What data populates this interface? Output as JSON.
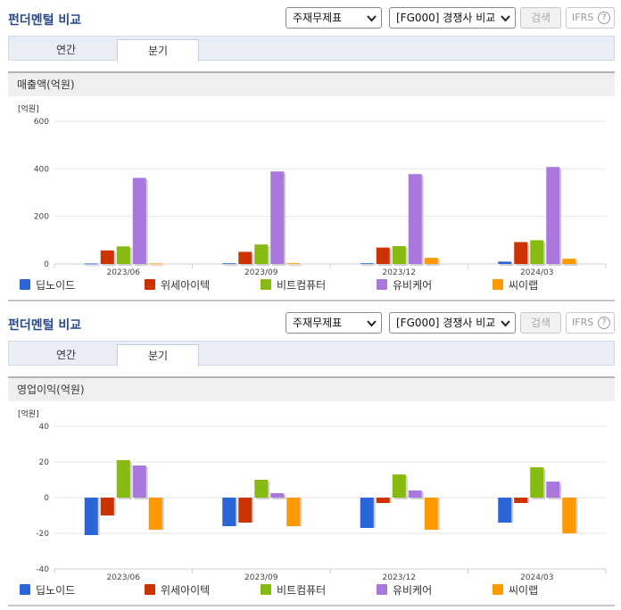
{
  "colors": {
    "series": [
      "#2a66d8",
      "#cc3300",
      "#88bb11",
      "#aa77dd",
      "#ff9900"
    ],
    "title": "#2a4a8a"
  },
  "controls": {
    "select_statement": "주재무제표",
    "select_compare": "[FG000] 경쟁사 비교",
    "search_label": "검색",
    "ifrs_label": "IFRS",
    "help_glyph": "?"
  },
  "panels": [
    {
      "title": "펀더멘털 비교",
      "tabs": [
        "연간",
        "분기"
      ],
      "section_title": "매출액(억원)",
      "chart_data": {
        "type": "bar",
        "unit_label": "[억원]",
        "categories": [
          "2023/06",
          "2023/09",
          "2023/12",
          "2024/03"
        ],
        "ylim": [
          0,
          600
        ],
        "yticks": [
          0,
          200,
          400,
          600
        ],
        "series": [
          {
            "name": "딥노이드",
            "values": [
              2,
              3,
              3,
              10
            ]
          },
          {
            "name": "위세아이텍",
            "values": [
              57,
              51,
              69,
              92
            ]
          },
          {
            "name": "비트컴퓨터",
            "values": [
              74,
              82,
              75,
              100
            ]
          },
          {
            "name": "유비케어",
            "values": [
              362,
              389,
              378,
              408
            ]
          },
          {
            "name": "씨이랩",
            "values": [
              2,
              3,
              26,
              22
            ]
          }
        ]
      }
    },
    {
      "title": "펀더멘털 비교",
      "tabs": [
        "연간",
        "분기"
      ],
      "section_title": "영업이익(억원)",
      "chart_data": {
        "type": "bar",
        "unit_label": "[억원]",
        "categories": [
          "2023/06",
          "2023/09",
          "2023/12",
          "2024/03"
        ],
        "ylim": [
          -40,
          40
        ],
        "yticks": [
          -40,
          -20,
          0,
          20,
          40
        ],
        "series": [
          {
            "name": "딥노이드",
            "values": [
              -21,
              -16,
              -17,
              -14
            ]
          },
          {
            "name": "위세아이텍",
            "values": [
              -10,
              -14,
              -3,
              -3
            ]
          },
          {
            "name": "비트컴퓨터",
            "values": [
              21,
              10,
              13,
              17
            ]
          },
          {
            "name": "유비케어",
            "values": [
              18,
              2.5,
              4,
              9
            ]
          },
          {
            "name": "씨이랩",
            "values": [
              -18,
              -16,
              -18,
              -20
            ]
          }
        ]
      }
    }
  ]
}
